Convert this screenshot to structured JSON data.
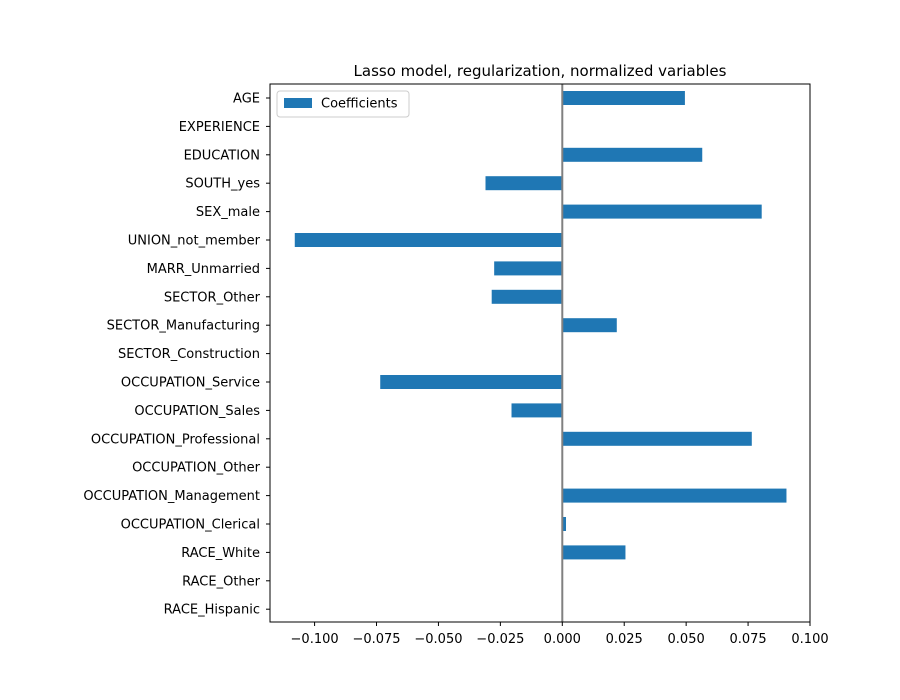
{
  "chart_data": {
    "type": "bar",
    "orientation": "horizontal",
    "title": "Lasso model, regularization, normalized variables",
    "xlabel": "",
    "ylabel": "",
    "categories": [
      "AGE",
      "EXPERIENCE",
      "EDUCATION",
      "SOUTH_yes",
      "SEX_male",
      "UNION_not_member",
      "MARR_Unmarried",
      "SECTOR_Other",
      "SECTOR_Manufacturing",
      "SECTOR_Construction",
      "OCCUPATION_Service",
      "OCCUPATION_Sales",
      "OCCUPATION_Professional",
      "OCCUPATION_Other",
      "OCCUPATION_Management",
      "OCCUPATION_Clerical",
      "RACE_White",
      "RACE_Other",
      "RACE_Hispanic"
    ],
    "series": [
      {
        "name": "Coefficients",
        "color": "#1f77b4",
        "values": [
          0.0495,
          0.0,
          0.0565,
          -0.031,
          0.0805,
          -0.108,
          -0.0275,
          -0.0285,
          0.022,
          0.0,
          -0.0735,
          -0.0205,
          0.0765,
          0.0,
          0.0905,
          0.0015,
          0.0255,
          0.0,
          0.0
        ]
      }
    ],
    "xlim": [
      -0.118,
      0.1
    ],
    "xticks": [
      -0.1,
      -0.075,
      -0.05,
      -0.025,
      0.0,
      0.025,
      0.05,
      0.075,
      0.1
    ],
    "xtick_labels": [
      "−0.100",
      "−0.075",
      "−0.050",
      "−0.025",
      "0.000",
      "0.025",
      "0.050",
      "0.075",
      "0.100"
    ],
    "zero_line": true,
    "zero_line_color": "#808080",
    "grid": false,
    "legend_position": "top-left"
  }
}
